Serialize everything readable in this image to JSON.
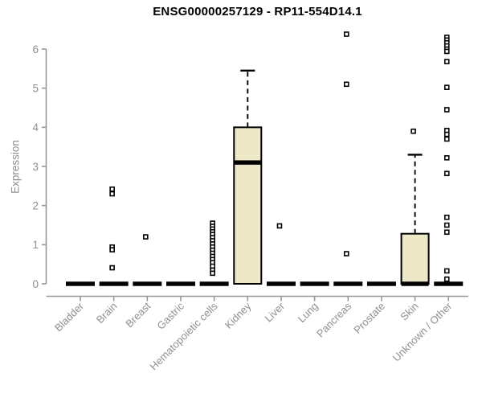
{
  "chart_data": {
    "type": "boxplot",
    "title": "ENSG00000257129 - RP11-554D14.1",
    "ylabel": "Expression",
    "xlabel": "",
    "ylim": [
      0,
      6.45
    ],
    "yticks": [
      0,
      1,
      2,
      3,
      4,
      5,
      6
    ],
    "grid": false,
    "legend": "none",
    "categories": [
      "Bladder",
      "Brain",
      "Breast",
      "Gastric",
      "Hematopoietic cells",
      "Kidney",
      "Liver",
      "Lung",
      "Pancreas",
      "Prostate",
      "Skin",
      "Unknown / Other"
    ],
    "series": [
      {
        "category": "Bladder",
        "q1": 0,
        "median": 0,
        "q3": 0,
        "whisker_low": 0,
        "whisker_high": 0,
        "outliers": []
      },
      {
        "category": "Brain",
        "q1": 0,
        "median": 0,
        "q3": 0,
        "whisker_low": 0,
        "whisker_high": 0,
        "outliers": [
          2.42,
          2.3,
          0.94,
          0.87,
          0.41
        ]
      },
      {
        "category": "Breast",
        "q1": 0,
        "median": 0,
        "q3": 0,
        "whisker_low": 0,
        "whisker_high": 0,
        "outliers": [
          1.2
        ]
      },
      {
        "category": "Gastric",
        "q1": 0,
        "median": 0,
        "q3": 0,
        "whisker_low": 0,
        "whisker_high": 0,
        "outliers": []
      },
      {
        "category": "Hematopoietic cells",
        "q1": 0,
        "median": 0,
        "q3": 0,
        "whisker_low": 0,
        "whisker_high": 0,
        "outliers": [
          1.55,
          1.47,
          1.4,
          1.33,
          1.26,
          1.18,
          1.1,
          1.02,
          0.94,
          0.86,
          0.78,
          0.7,
          0.62,
          0.54,
          0.45,
          0.35,
          0.27
        ]
      },
      {
        "category": "Kidney",
        "q1": 0,
        "median": 3.1,
        "q3": 4.0,
        "whisker_low": 0,
        "whisker_high": 5.45,
        "outliers": []
      },
      {
        "category": "Liver",
        "q1": 0,
        "median": 0,
        "q3": 0,
        "whisker_low": 0,
        "whisker_high": 0,
        "outliers": [
          1.48
        ]
      },
      {
        "category": "Lung",
        "q1": 0,
        "median": 0,
        "q3": 0,
        "whisker_low": 0,
        "whisker_high": 0,
        "outliers": []
      },
      {
        "category": "Pancreas",
        "q1": 0,
        "median": 0,
        "q3": 0,
        "whisker_low": 0,
        "whisker_high": 0,
        "outliers": [
          6.38,
          5.1,
          0.77
        ]
      },
      {
        "category": "Prostate",
        "q1": 0,
        "median": 0,
        "q3": 0,
        "whisker_low": 0,
        "whisker_high": 0,
        "outliers": []
      },
      {
        "category": "Skin",
        "q1": 0,
        "median": 0,
        "q3": 1.28,
        "whisker_low": 0,
        "whisker_high": 3.3,
        "outliers": [
          3.9
        ]
      },
      {
        "category": "Unknown / Other",
        "q1": 0,
        "median": 0,
        "q3": 0,
        "whisker_low": 0,
        "whisker_high": 0,
        "outliers": [
          6.3,
          6.23,
          6.16,
          6.08,
          6.0,
          5.94,
          5.68,
          5.02,
          4.45,
          3.92,
          3.82,
          3.7,
          3.22,
          2.82,
          1.7,
          1.5,
          1.32,
          0.33,
          0.12
        ]
      }
    ],
    "colors": {
      "box_fill": "#EDE8C8",
      "box_border": "#000000",
      "median": "#000000",
      "whisker": "#000000",
      "outlier_stroke": "#000000",
      "outlier_fill": "#ffffff",
      "axis_line": "#979797",
      "axis_text": "#8f8f8f",
      "title_text": "#000000",
      "background": "#ffffff"
    }
  }
}
